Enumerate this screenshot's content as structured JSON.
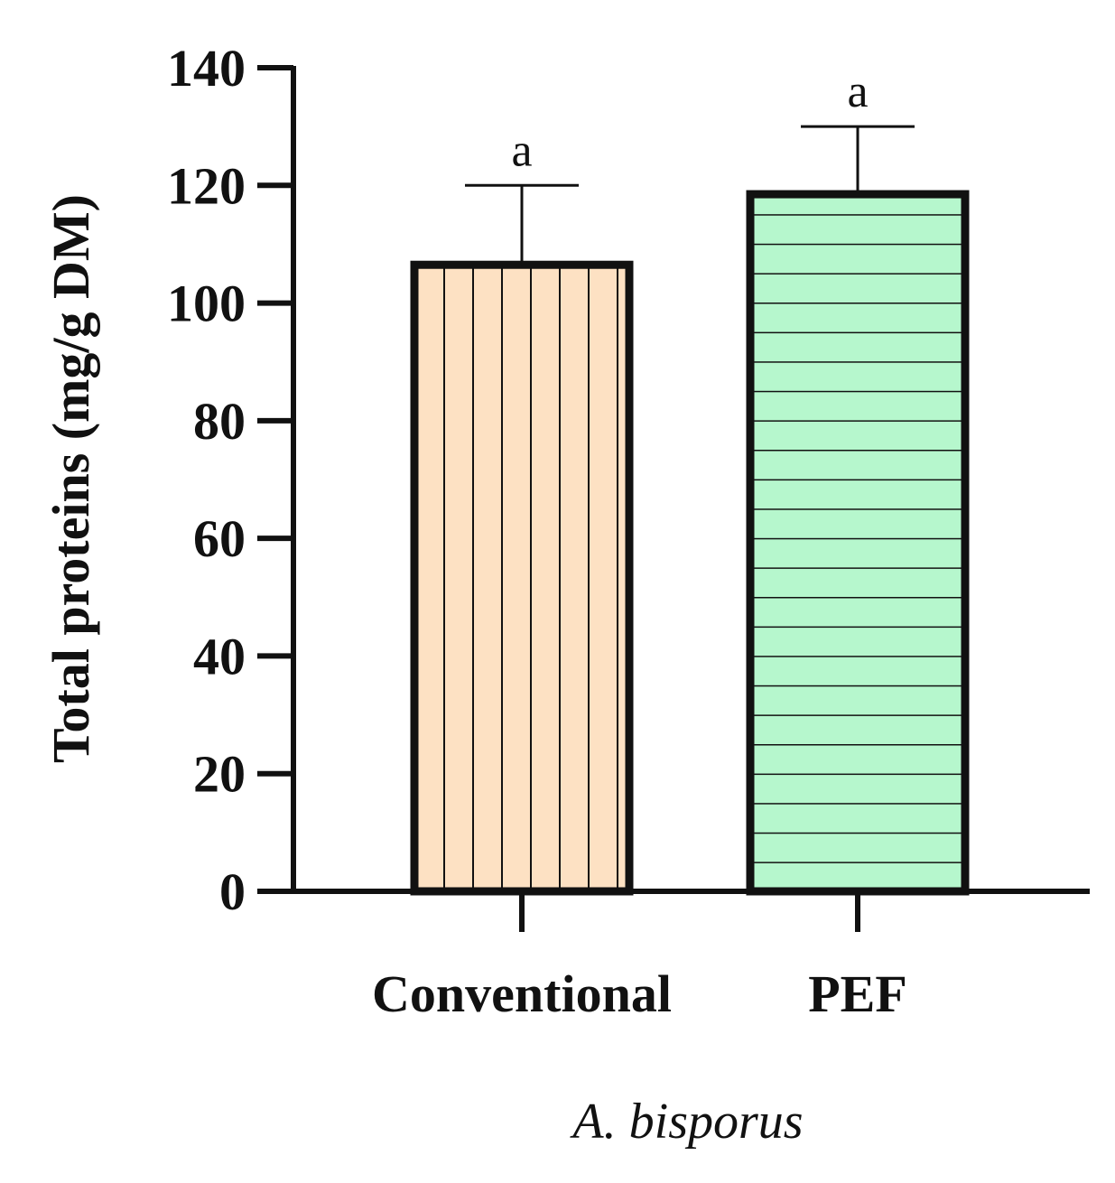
{
  "chart_data": {
    "type": "bar",
    "title": "",
    "ylabel": "Total proteins (mg/g DM)",
    "xlabel": "A. bisporus",
    "ylim": [
      0,
      140
    ],
    "yticks": [
      0,
      20,
      40,
      60,
      80,
      100,
      120,
      140
    ],
    "grid": false,
    "categories": [
      "Conventional",
      "PEF"
    ],
    "values": [
      106.5,
      118.5
    ],
    "errors": [
      13.5,
      11.5
    ],
    "significance": [
      "a",
      "a"
    ],
    "colors": [
      "#fde1c3",
      "#b6f7cd"
    ],
    "patterns": [
      "vertical-stripes",
      "horizontal-stripes"
    ]
  }
}
